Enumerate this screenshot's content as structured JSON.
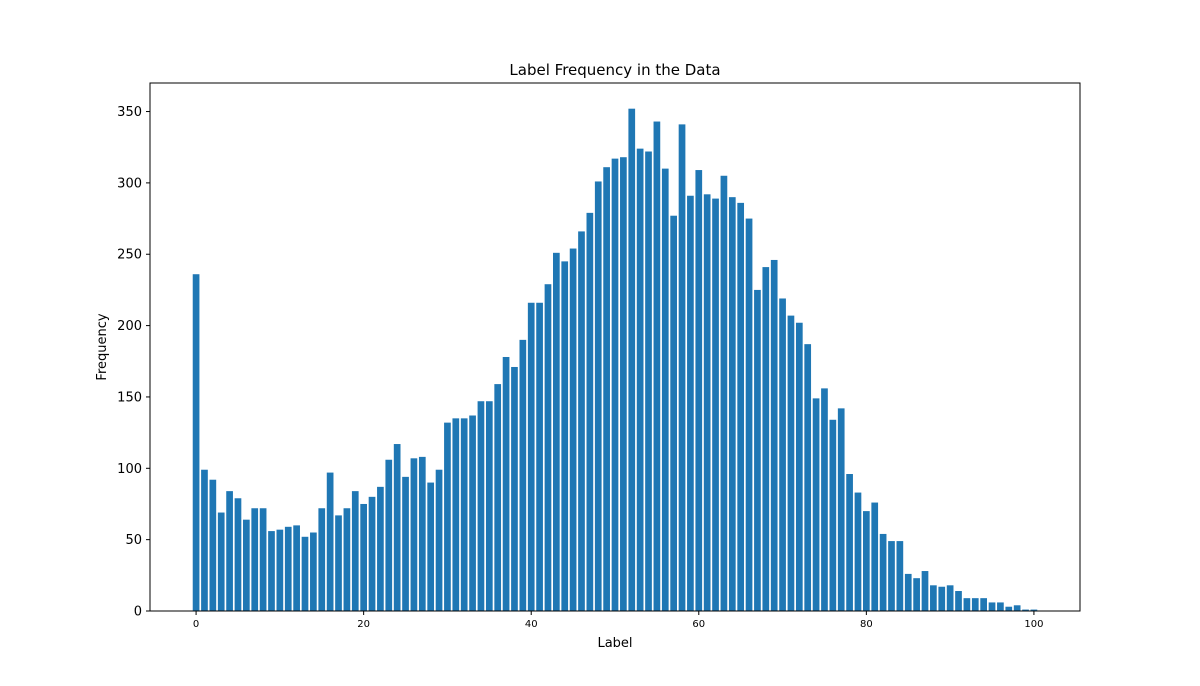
{
  "chart_data": {
    "type": "bar",
    "title": "Label Frequency in the Data",
    "xlabel": "Label",
    "ylabel": "Frequency",
    "xlim": [
      -5.5,
      105.5
    ],
    "ylim": [
      0,
      370
    ],
    "xticks": [
      0,
      20,
      40,
      60,
      80,
      100
    ],
    "xtick_labels": [
      "0",
      "20",
      "40",
      "60",
      "80",
      "100"
    ],
    "yticks": [
      0,
      50,
      100,
      150,
      200,
      250,
      300,
      350
    ],
    "ytick_labels": [
      "0",
      "50",
      "100",
      "150",
      "200",
      "250",
      "300",
      "350"
    ],
    "color": "#1f77b4",
    "bar_width": 0.8,
    "grid": false,
    "categories": [
      0,
      1,
      2,
      3,
      4,
      5,
      6,
      7,
      8,
      9,
      10,
      11,
      12,
      13,
      14,
      15,
      16,
      17,
      18,
      19,
      20,
      21,
      22,
      23,
      24,
      25,
      26,
      27,
      28,
      29,
      30,
      31,
      32,
      33,
      34,
      35,
      36,
      37,
      38,
      39,
      40,
      41,
      42,
      43,
      44,
      45,
      46,
      47,
      48,
      49,
      50,
      51,
      52,
      53,
      54,
      55,
      56,
      57,
      58,
      59,
      60,
      61,
      62,
      63,
      64,
      65,
      66,
      67,
      68,
      69,
      70,
      71,
      72,
      73,
      74,
      75,
      76,
      77,
      78,
      79,
      80,
      81,
      82,
      83,
      84,
      85,
      86,
      87,
      88,
      89,
      90,
      91,
      92,
      93,
      94,
      95,
      96,
      97,
      98,
      99,
      100
    ],
    "values": [
      236,
      99,
      92,
      69,
      84,
      79,
      64,
      72,
      72,
      56,
      57,
      59,
      60,
      52,
      55,
      72,
      97,
      67,
      72,
      84,
      75,
      80,
      87,
      106,
      117,
      94,
      107,
      108,
      90,
      99,
      132,
      135,
      135,
      137,
      147,
      147,
      159,
      178,
      171,
      190,
      216,
      216,
      229,
      251,
      245,
      254,
      266,
      279,
      301,
      311,
      317,
      318,
      352,
      324,
      322,
      343,
      310,
      277,
      341,
      291,
      309,
      292,
      289,
      305,
      290,
      286,
      275,
      225,
      241,
      246,
      219,
      207,
      202,
      187,
      149,
      156,
      134,
      142,
      96,
      83,
      70,
      76,
      54,
      49,
      49,
      26,
      23,
      28,
      18,
      17,
      18,
      14,
      9,
      9,
      9,
      6,
      6,
      3,
      4,
      1,
      1
    ]
  }
}
